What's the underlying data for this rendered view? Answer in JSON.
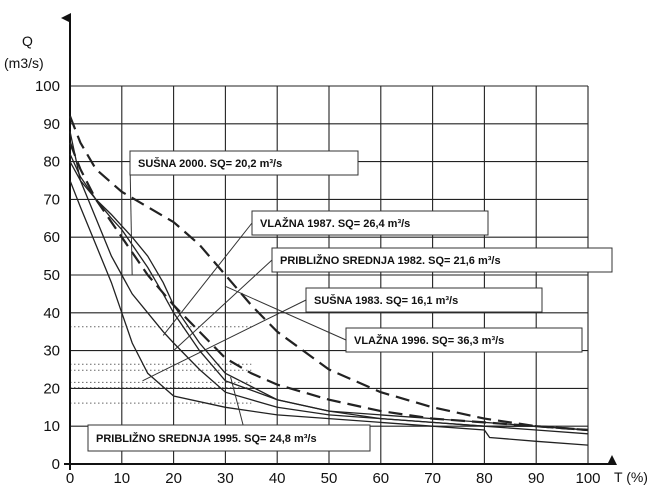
{
  "chart_data": {
    "type": "line",
    "ylabel": "Q",
    "yunit": "(m3/s)",
    "xlabel": "T (%)",
    "xlim": [
      0,
      100
    ],
    "ylim": [
      0,
      100
    ],
    "xticks": [
      0,
      10,
      20,
      30,
      40,
      50,
      60,
      70,
      80,
      90,
      100
    ],
    "yticks": [
      0,
      10,
      20,
      30,
      40,
      50,
      60,
      70,
      80,
      90,
      100
    ],
    "grid": true,
    "series": [
      {
        "name": "SUŠNA 2000. SQ= 20,2 m³/s",
        "style": "solid",
        "mean": 20.2,
        "x": [
          0,
          2,
          5,
          8,
          10,
          12,
          15,
          18,
          20,
          25,
          30,
          40,
          50,
          60,
          70,
          80,
          90,
          100
        ],
        "y": [
          88,
          75,
          65,
          55,
          50,
          45,
          40,
          35,
          32,
          25,
          19,
          15,
          13,
          12,
          11,
          10,
          10,
          9
        ]
      },
      {
        "name": "VLAŽNA 1987. SQ= 26,4 m³/s",
        "style": "dashed",
        "mean": 26.4,
        "x": [
          0,
          2,
          5,
          10,
          15,
          20,
          25,
          30,
          35,
          40,
          50,
          60,
          70,
          80,
          90,
          100
        ],
        "y": [
          85,
          78,
          70,
          60,
          50,
          42,
          35,
          28,
          24,
          21,
          17,
          14,
          12,
          11,
          10,
          9
        ]
      },
      {
        "name": "PRIBLIŽNO SREDNJA 1982. SQ= 21,6 m³/s",
        "style": "solid",
        "mean": 21.6,
        "x": [
          0,
          2,
          5,
          8,
          10,
          12,
          15,
          18,
          20,
          25,
          30,
          40,
          50,
          60,
          70,
          80,
          90,
          100
        ],
        "y": [
          80,
          75,
          70,
          65,
          62,
          58,
          52,
          45,
          40,
          30,
          22,
          17,
          14,
          13,
          12,
          11,
          10,
          9
        ]
      },
      {
        "name": "SUŠNA 1983. SQ= 16,1 m³/s",
        "style": "solid",
        "mean": 16.1,
        "x": [
          0,
          2,
          5,
          8,
          10,
          12,
          15,
          20,
          30,
          40,
          50,
          60,
          70,
          80,
          81,
          90,
          100
        ],
        "y": [
          75,
          68,
          58,
          48,
          40,
          32,
          24,
          18,
          15,
          13,
          12,
          11,
          10,
          9,
          7,
          6,
          5
        ]
      },
      {
        "name": "VLAŽNA 1996. SQ= 36,3 m³/s",
        "style": "dashed",
        "mean": 36.3,
        "x": [
          0,
          2,
          5,
          10,
          15,
          20,
          25,
          30,
          35,
          40,
          45,
          50,
          60,
          70,
          80,
          90,
          100
        ],
        "y": [
          92,
          85,
          78,
          72,
          68,
          64,
          58,
          50,
          42,
          35,
          30,
          25,
          19,
          15,
          12,
          10,
          9
        ]
      },
      {
        "name": "PRIBLIŽNO SREDNJA 1995. SQ= 24,8 m³/s",
        "style": "solid",
        "mean": 24.8,
        "x": [
          0,
          2,
          5,
          8,
          10,
          12,
          15,
          18,
          20,
          25,
          30,
          40,
          50,
          60,
          70,
          80,
          90,
          100
        ],
        "y": [
          82,
          76,
          70,
          66,
          63,
          60,
          55,
          48,
          42,
          32,
          24,
          17,
          14,
          12,
          11,
          10,
          9,
          8
        ]
      }
    ]
  }
}
